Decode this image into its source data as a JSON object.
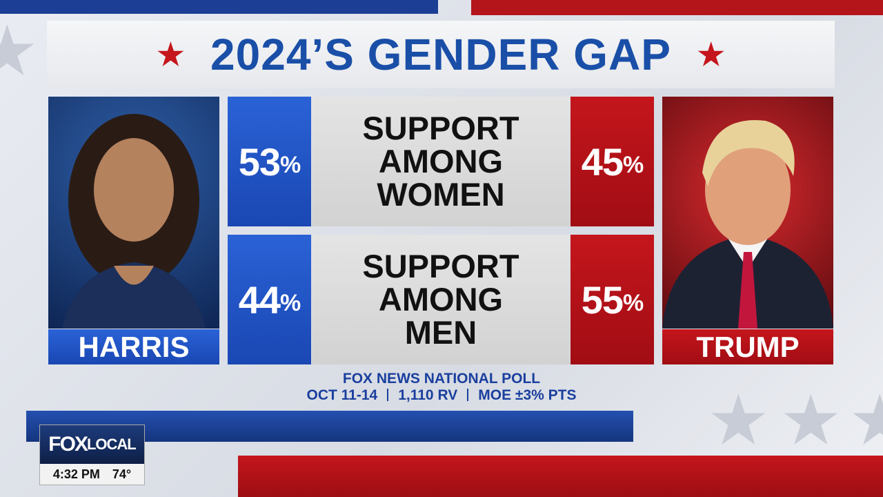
{
  "header": {
    "title": "2024’S GENDER GAP"
  },
  "candidates": [
    {
      "name": "HARRIS"
    },
    {
      "name": "TRUMP"
    }
  ],
  "rows": [
    {
      "label": [
        "SUPPORT",
        "AMONG",
        "WOMEN"
      ],
      "harris": {
        "value": 53,
        "unit": "%"
      },
      "trump": {
        "value": 45,
        "unit": "%"
      }
    },
    {
      "label": [
        "SUPPORT",
        "AMONG",
        "MEN"
      ],
      "harris": {
        "value": 44,
        "unit": "%"
      },
      "trump": {
        "value": 55,
        "unit": "%"
      }
    }
  ],
  "footer": {
    "source": "FOX NEWS NATIONAL POLL",
    "details": [
      "OCT 11-14",
      "1,110 RV",
      "MOE ±3% PTS"
    ]
  },
  "bug": {
    "brand": "FOX",
    "sub": "LOCAL",
    "time": "4:32 PM",
    "temp": "74°"
  }
}
